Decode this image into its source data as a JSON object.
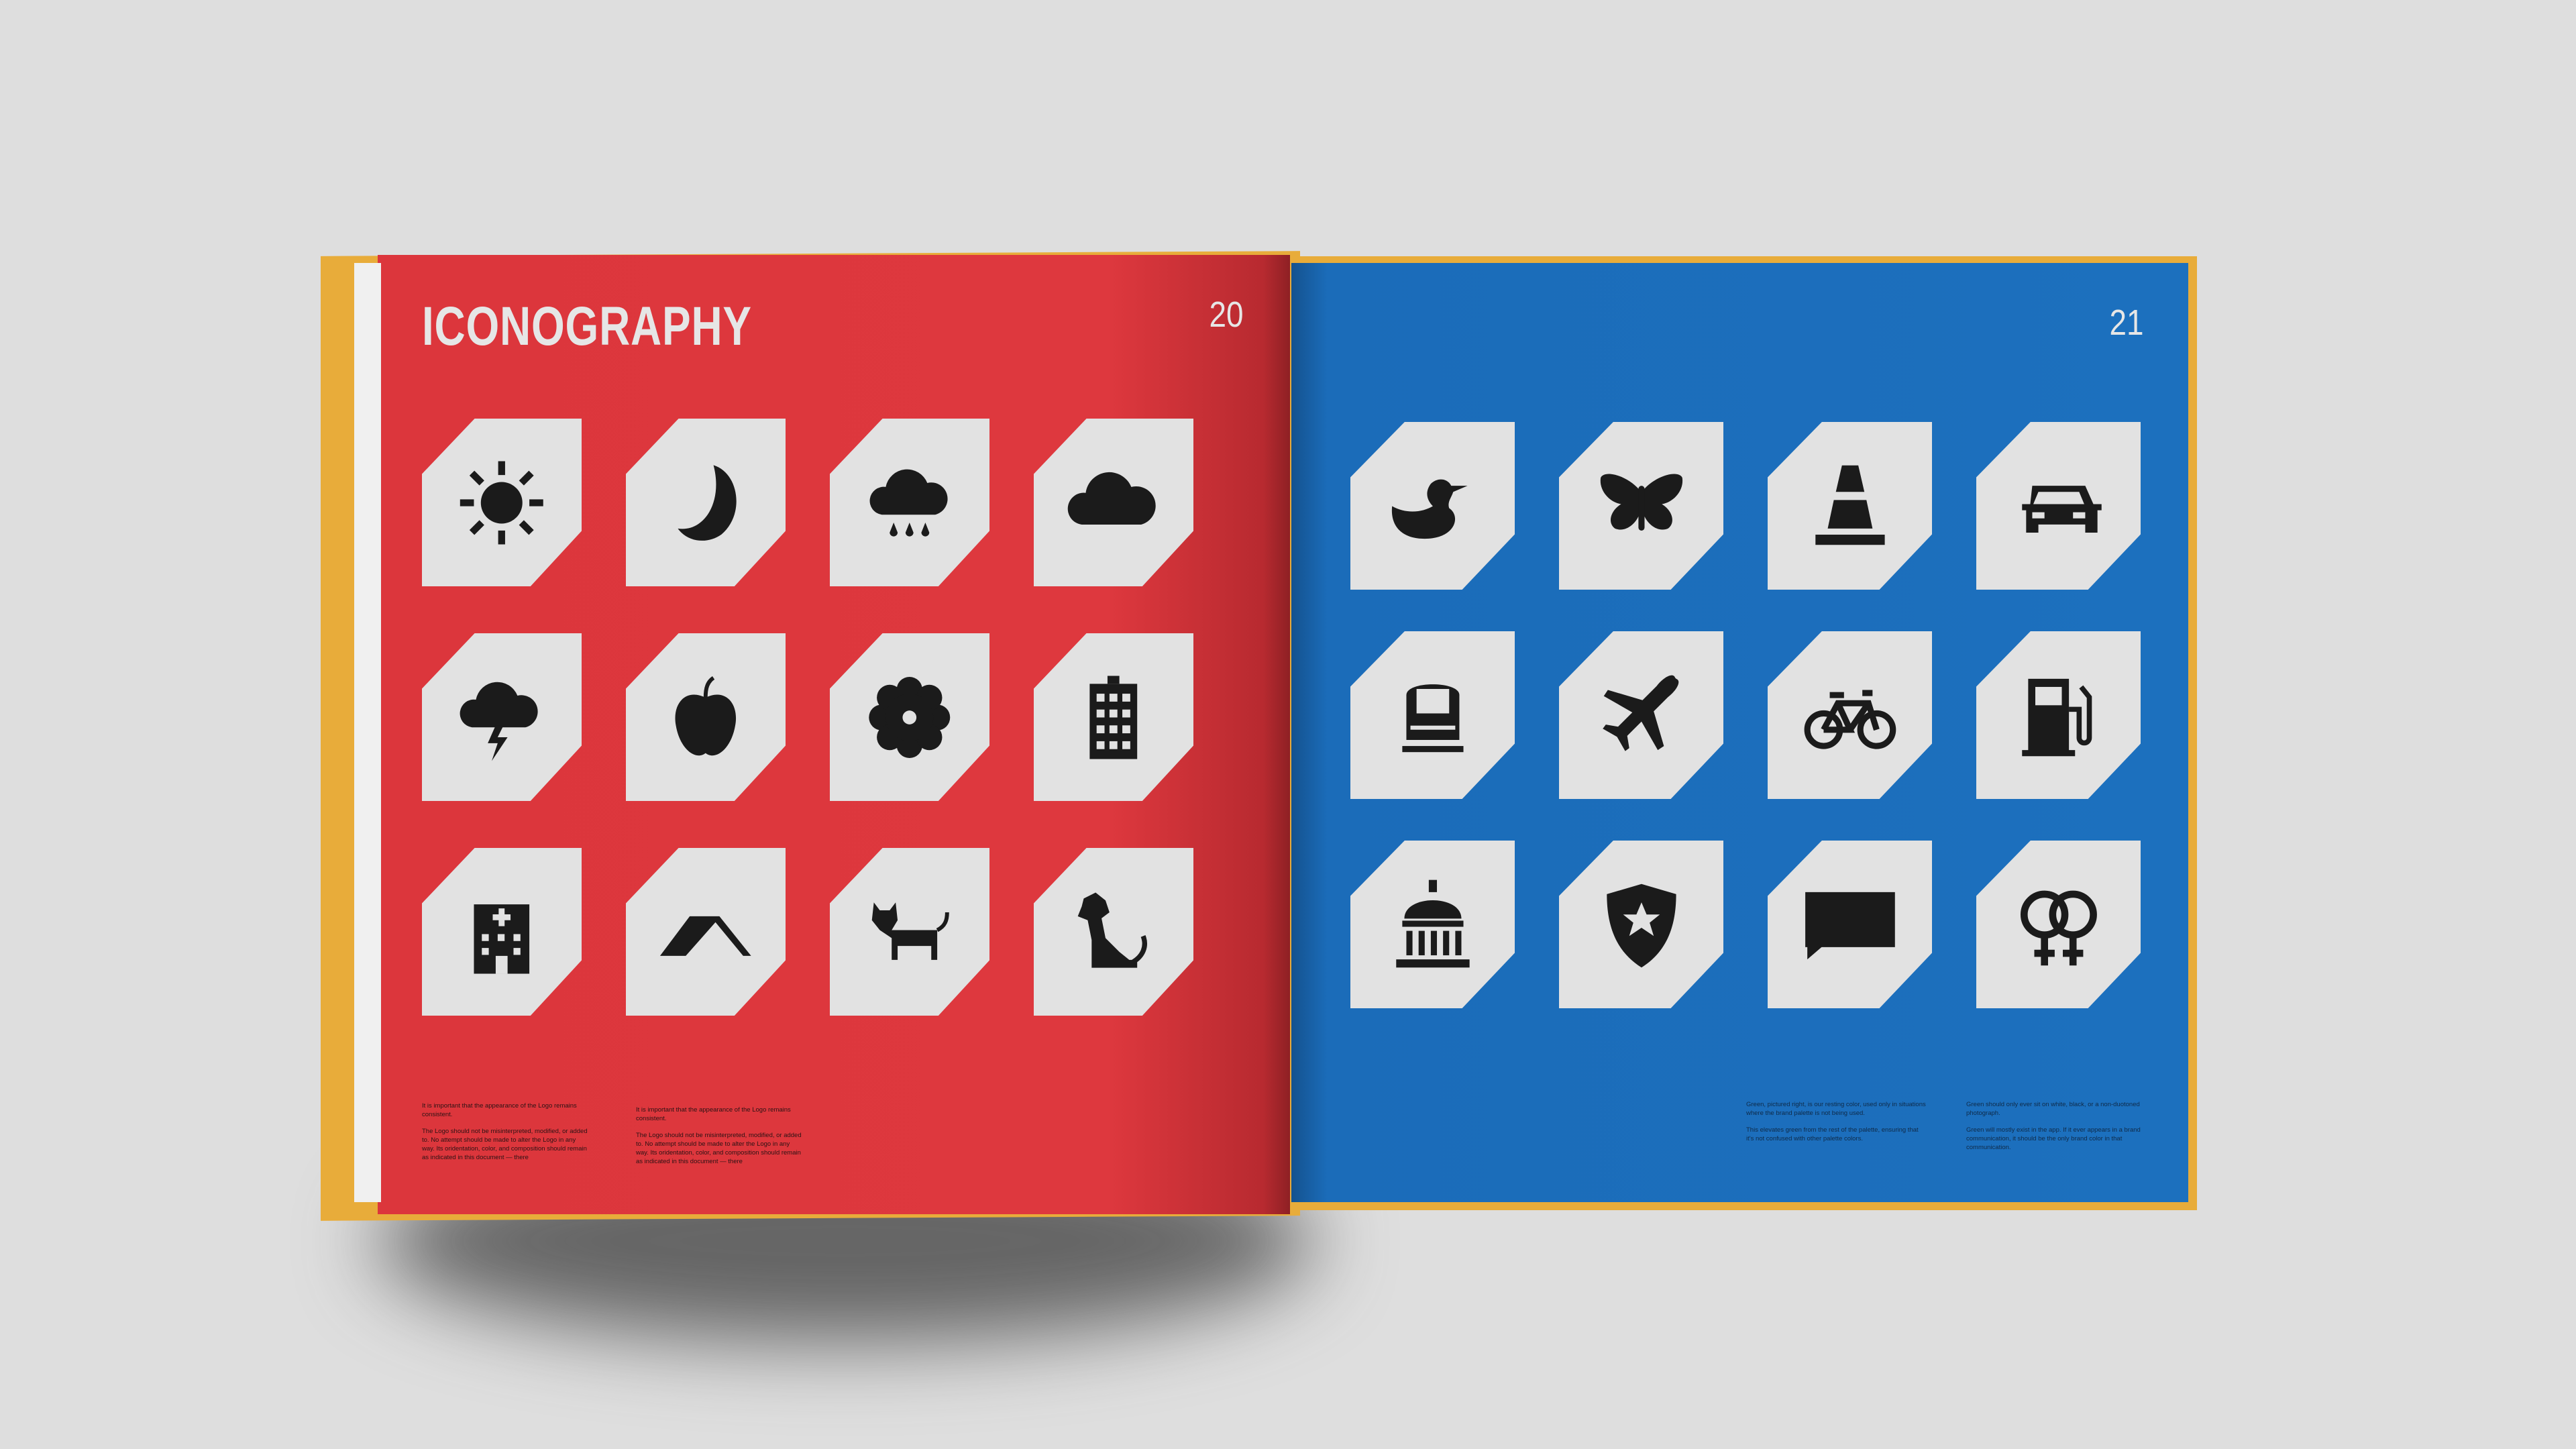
{
  "left_page": {
    "title": "ICONOGRAPHY",
    "page_number": "20",
    "color": "#dc363c",
    "icons": [
      "sun-icon",
      "moon-icon",
      "rain-cloud-icon",
      "cloud-icon",
      "storm-cloud-icon",
      "apple-icon",
      "flower-icon",
      "building-icon",
      "hospital-icon",
      "tent-icon",
      "cat-icon",
      "dog-icon"
    ],
    "text_columns": [
      {
        "p1": "It is important that the appearance of the Logo remains consistent.",
        "p2": "The Logo should not be misinterpreted, modified, or added to. No attempt should be made to alter the Logo in any way. Its oridentation, color, and composition should remain as indicated in this document — there"
      },
      {
        "p1": "It is important that the appearance of the Logo remains consistent.",
        "p2": "The Logo should not be misinterpreted, modified, or added to. No attempt should be made to alter the Logo in any way. Its oridentation, color, and composition should remain as indicated in this document — there"
      }
    ]
  },
  "right_page": {
    "page_number": "21",
    "color": "#1c70be",
    "icons": [
      "duck-icon",
      "butterfly-icon",
      "traffic-cone-icon",
      "car-icon",
      "train-icon",
      "airplane-icon",
      "bicycle-icon",
      "gas-pump-icon",
      "courthouse-icon",
      "police-shield-icon",
      "speech-bubble-icon",
      "gender-icon"
    ],
    "text_columns": [
      {
        "p1": "Green, pictured right, is our resting color, used only in situations where the brand palette is not being used.",
        "p2": "This elevates green from the rest of the palette, ensuring that it's not confused with other palette colors."
      },
      {
        "p1": "Green should only ever sit on white, black, or a non-duotoned photograph.",
        "p2": "Green will mostly exist in the app. If it ever appears in a brand communication, it should be the only brand color in that communication."
      }
    ]
  },
  "cover_color": "#e8ac3a",
  "icon_color": "#1b1b1b",
  "tile_color": "#e2e2e2"
}
